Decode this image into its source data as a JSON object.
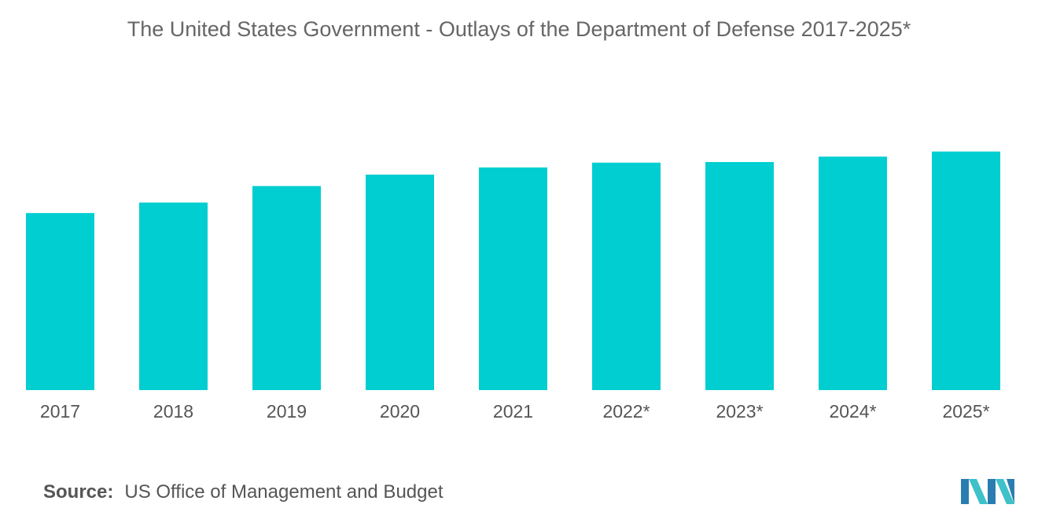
{
  "chart_data": {
    "type": "bar",
    "title": "The United States Government - Outlays of the Department of Defense 2017-2025*",
    "categories": [
      "2017",
      "2018",
      "2019",
      "2020",
      "2021",
      "2022*",
      "2023*",
      "2024*",
      "2025*"
    ],
    "values": [
      590,
      625,
      680,
      718,
      742,
      758,
      760,
      778,
      795
    ],
    "ylim": [
      0,
      1300
    ],
    "xlabel": "",
    "ylabel": "",
    "grid": false,
    "legend": "none",
    "bar_color": "#00CED1"
  },
  "source": {
    "label": "Source:",
    "text": "US Office of Management and Budget"
  },
  "logo": {
    "icon": "mordor-intelligence-logo-icon",
    "colors": [
      "#2A7DB0",
      "#3FC1C9"
    ]
  }
}
